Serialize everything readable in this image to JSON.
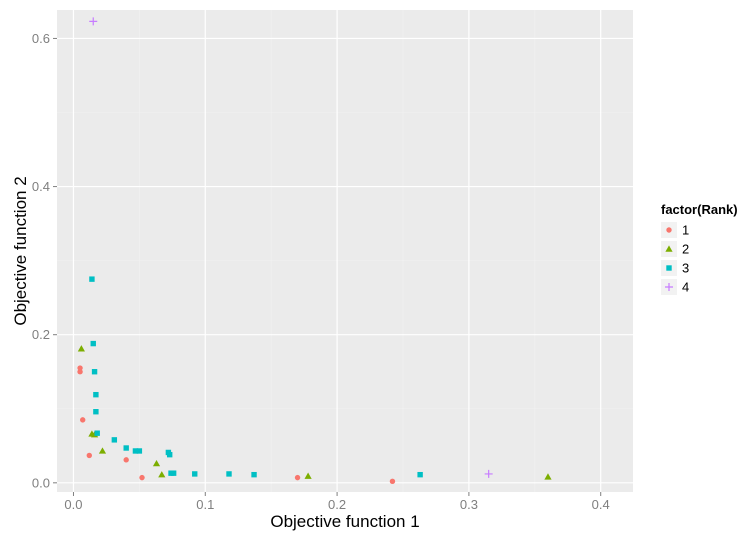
{
  "chart_data": {
    "type": "scatter",
    "xlabel": "Objective function 1",
    "ylabel": "Objective function 2",
    "xlim": [
      -0.0125,
      0.4245
    ],
    "ylim": [
      -0.0124,
      0.6384
    ],
    "x_ticks": [
      0.0,
      0.1,
      0.2,
      0.3,
      0.4
    ],
    "x_tick_labels": [
      "0.0",
      "0.1",
      "0.2",
      "0.3",
      "0.4"
    ],
    "y_ticks": [
      0.0,
      0.2,
      0.4,
      0.6
    ],
    "y_tick_labels": [
      "0.0",
      "0.2",
      "0.4",
      "0.6"
    ],
    "grid": true,
    "legend": {
      "title": "factor(Rank)",
      "position": "right"
    },
    "series": [
      {
        "name": "1",
        "color": "#F8766D",
        "shape": "circle",
        "x": [
          0.005,
          0.005,
          0.007,
          0.012,
          0.04,
          0.052,
          0.17,
          0.242
        ],
        "y": [
          0.155,
          0.15,
          0.085,
          0.037,
          0.031,
          0.007,
          0.007,
          0.002
        ]
      },
      {
        "name": "2",
        "color": "#7CAE00",
        "shape": "triangle",
        "x": [
          0.006,
          0.014,
          0.016,
          0.022,
          0.063,
          0.067,
          0.178,
          0.36
        ],
        "y": [
          0.181,
          0.066,
          0.065,
          0.043,
          0.026,
          0.011,
          0.009,
          0.008
        ]
      },
      {
        "name": "3",
        "color": "#00BFC4",
        "shape": "square",
        "x": [
          0.014,
          0.015,
          0.016,
          0.017,
          0.017,
          0.018,
          0.031,
          0.04,
          0.047,
          0.05,
          0.072,
          0.073,
          0.074,
          0.076,
          0.092,
          0.118,
          0.137,
          0.263
        ],
        "y": [
          0.275,
          0.188,
          0.15,
          0.119,
          0.096,
          0.067,
          0.058,
          0.047,
          0.043,
          0.043,
          0.041,
          0.038,
          0.013,
          0.013,
          0.012,
          0.012,
          0.011,
          0.011
        ]
      },
      {
        "name": "4",
        "color": "#C77CFF",
        "shape": "plus",
        "x": [
          0.015,
          0.315
        ],
        "y": [
          0.623,
          0.012
        ]
      }
    ]
  }
}
